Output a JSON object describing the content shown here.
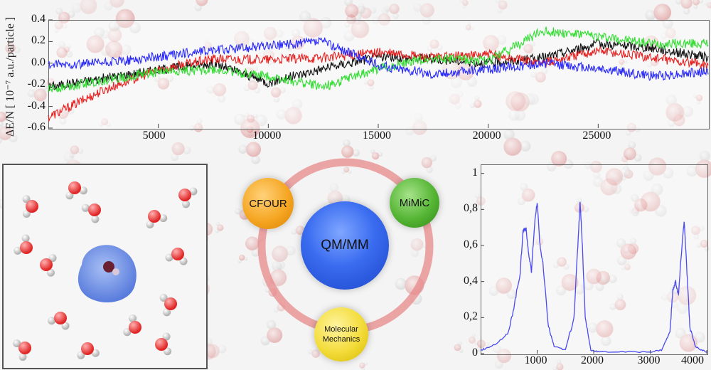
{
  "colors": {
    "black": "#111111",
    "red": "#e82020",
    "green": "#33dd33",
    "blue": "#2a2aff",
    "spectrum": "#4a4af0",
    "ring": "#e88a8a"
  },
  "top_chart": {
    "ylabel": "ΔE/N [ 10⁻⁷ a.u./particle ]",
    "ytick_labels": [
      "0.4",
      "0.2",
      "0.0",
      "-0.2",
      "-0.4",
      "-0.6"
    ],
    "xtick_labels": [
      "5000",
      "10000",
      "15000",
      "20000",
      "25000"
    ]
  },
  "diagram": {
    "center_label": "QM/MM",
    "nodes": {
      "cfour": "CFOUR",
      "mimic": "MiMiC",
      "mm_line1": "Molecular",
      "mm_line2": "Mechanics"
    }
  },
  "spectrum_chart": {
    "ytick_labels": [
      "1",
      "0,8",
      "0,6",
      "0,4",
      "0,2",
      "0"
    ],
    "xtick_labels": [
      "1000",
      "2000",
      "3000",
      "4000"
    ]
  },
  "chart_data": [
    {
      "type": "line",
      "title": "",
      "xlabel": "",
      "ylabel": "ΔE/N [ 10⁻⁷ a.u./particle ]",
      "xlim": [
        0,
        30000
      ],
      "ylim": [
        -0.6,
        0.4
      ],
      "x": [
        0,
        2500,
        5000,
        7500,
        10000,
        12500,
        15000,
        17500,
        20000,
        22500,
        25000,
        27500,
        30000
      ],
      "series": [
        {
          "name": "black",
          "values": [
            -0.22,
            -0.14,
            -0.06,
            0.0,
            -0.18,
            -0.05,
            0.06,
            0.04,
            0.0,
            0.05,
            0.18,
            0.14,
            0.05
          ]
        },
        {
          "name": "red",
          "values": [
            -0.5,
            -0.25,
            -0.06,
            0.04,
            0.03,
            0.05,
            0.1,
            0.05,
            0.08,
            0.0,
            0.12,
            0.05,
            -0.02
          ]
        },
        {
          "name": "green",
          "values": [
            -0.24,
            -0.16,
            -0.08,
            -0.06,
            -0.12,
            -0.22,
            -0.05,
            0.05,
            0.02,
            0.3,
            0.25,
            0.18,
            0.18
          ]
        },
        {
          "name": "blue",
          "values": [
            -0.02,
            0.0,
            0.06,
            0.12,
            0.16,
            0.2,
            -0.02,
            -0.1,
            -0.06,
            0.0,
            -0.05,
            -0.12,
            -0.08
          ]
        }
      ]
    },
    {
      "type": "line",
      "title": "",
      "xlabel": "",
      "ylabel": "",
      "xlim": [
        0,
        4000
      ],
      "ylim": [
        0,
        1.05
      ],
      "x": [
        0,
        100,
        300,
        500,
        600,
        700,
        750,
        800,
        850,
        900,
        950,
        1000,
        1050,
        1100,
        1200,
        1300,
        1500,
        1650,
        1720,
        1760,
        1800,
        1850,
        1950,
        2100,
        2500,
        3000,
        3200,
        3350,
        3400,
        3450,
        3500,
        3550,
        3600,
        3650,
        3700,
        3800,
        3900,
        4000
      ],
      "series": [
        {
          "name": "spectrum",
          "values": [
            0.02,
            0.03,
            0.06,
            0.12,
            0.28,
            0.45,
            0.68,
            0.7,
            0.55,
            0.45,
            0.7,
            0.84,
            0.6,
            0.5,
            0.15,
            0.04,
            0.02,
            0.2,
            0.6,
            0.85,
            0.6,
            0.2,
            0.02,
            0.01,
            0.01,
            0.01,
            0.02,
            0.12,
            0.35,
            0.4,
            0.32,
            0.55,
            0.74,
            0.45,
            0.15,
            0.04,
            0.02,
            0.01
          ]
        }
      ]
    }
  ]
}
